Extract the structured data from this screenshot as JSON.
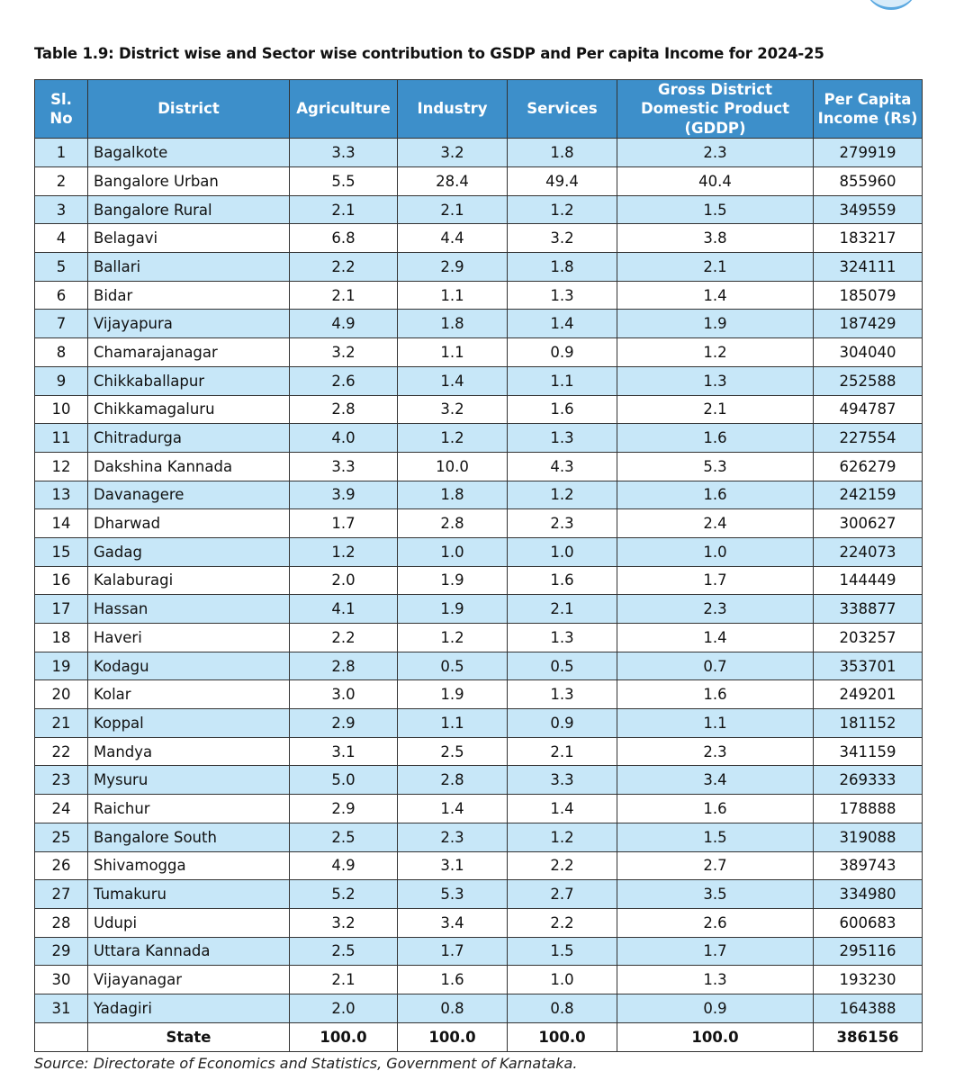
{
  "title": "Table 1.9: District wise and Sector wise contribution to GSDP and Per capita Income for 2024-25",
  "table": {
    "header": [
      "Sl. No",
      "District",
      "Agriculture",
      "Industry",
      "Services",
      "Gross District Domestic Product (GDDP)",
      "Per Capita Income (Rs)"
    ],
    "rows": [
      [
        "1",
        "Bagalkote",
        "3.3",
        "3.2",
        "1.8",
        "2.3",
        "279919"
      ],
      [
        "2",
        "Bangalore Urban",
        "5.5",
        "28.4",
        "49.4",
        "40.4",
        "855960"
      ],
      [
        "3",
        "Bangalore Rural",
        "2.1",
        "2.1",
        "1.2",
        "1.5",
        "349559"
      ],
      [
        "4",
        "Belagavi",
        "6.8",
        "4.4",
        "3.2",
        "3.8",
        "183217"
      ],
      [
        "5",
        "Ballari",
        "2.2",
        "2.9",
        "1.8",
        "2.1",
        "324111"
      ],
      [
        "6",
        "Bidar",
        "2.1",
        "1.1",
        "1.3",
        "1.4",
        "185079"
      ],
      [
        "7",
        "Vijayapura",
        "4.9",
        "1.8",
        "1.4",
        "1.9",
        "187429"
      ],
      [
        "8",
        "Chamarajanagar",
        "3.2",
        "1.1",
        "0.9",
        "1.2",
        "304040"
      ],
      [
        "9",
        "Chikkaballapur",
        "2.6",
        "1.4",
        "1.1",
        "1.3",
        "252588"
      ],
      [
        "10",
        "Chikkamagaluru",
        "2.8",
        "3.2",
        "1.6",
        "2.1",
        "494787"
      ],
      [
        "11",
        "Chitradurga",
        "4.0",
        "1.2",
        "1.3",
        "1.6",
        "227554"
      ],
      [
        "12",
        "Dakshina Kannada",
        "3.3",
        "10.0",
        "4.3",
        "5.3",
        "626279"
      ],
      [
        "13",
        "Davanagere",
        "3.9",
        "1.8",
        "1.2",
        "1.6",
        "242159"
      ],
      [
        "14",
        "Dharwad",
        "1.7",
        "2.8",
        "2.3",
        "2.4",
        "300627"
      ],
      [
        "15",
        "Gadag",
        "1.2",
        "1.0",
        "1.0",
        "1.0",
        "224073"
      ],
      [
        "16",
        "Kalaburagi",
        "2.0",
        "1.9",
        "1.6",
        "1.7",
        "144449"
      ],
      [
        "17",
        "Hassan",
        "4.1",
        "1.9",
        "2.1",
        "2.3",
        "338877"
      ],
      [
        "18",
        "Haveri",
        "2.2",
        "1.2",
        "1.3",
        "1.4",
        "203257"
      ],
      [
        "19",
        "Kodagu",
        "2.8",
        "0.5",
        "0.5",
        "0.7",
        "353701"
      ],
      [
        "20",
        "Kolar",
        "3.0",
        "1.9",
        "1.3",
        "1.6",
        "249201"
      ],
      [
        "21",
        "Koppal",
        "2.9",
        "1.1",
        "0.9",
        "1.1",
        "181152"
      ],
      [
        "22",
        "Mandya",
        "3.1",
        "2.5",
        "2.1",
        "2.3",
        "341159"
      ],
      [
        "23",
        "Mysuru",
        "5.0",
        "2.8",
        "3.3",
        "3.4",
        "269333"
      ],
      [
        "24",
        "Raichur",
        "2.9",
        "1.4",
        "1.4",
        "1.6",
        "178888"
      ],
      [
        "25",
        "Bangalore South",
        "2.5",
        "2.3",
        "1.2",
        "1.5",
        "319088"
      ],
      [
        "26",
        "Shivamogga",
        "4.9",
        "3.1",
        "2.2",
        "2.7",
        "389743"
      ],
      [
        "27",
        "Tumakuru",
        "5.2",
        "5.3",
        "2.7",
        "3.5",
        "334980"
      ],
      [
        "28",
        "Udupi",
        "3.2",
        "3.4",
        "2.2",
        "2.6",
        "600683"
      ],
      [
        "29",
        "Uttara Kannada",
        "2.5",
        "1.7",
        "1.5",
        "1.7",
        "295116"
      ],
      [
        "30",
        "Vijayanagar",
        "2.1",
        "1.6",
        "1.0",
        "1.3",
        "193230"
      ],
      [
        "31",
        "Yadagiri",
        "2.0",
        "0.8",
        "0.8",
        "0.9",
        "164388"
      ]
    ],
    "total": {
      "label": "State",
      "values": [
        "100.0",
        "100.0",
        "100.0",
        "100.0",
        "386156"
      ]
    }
  },
  "source": "Source: Directorate of Economics and Statistics, Government of Karnataka."
}
